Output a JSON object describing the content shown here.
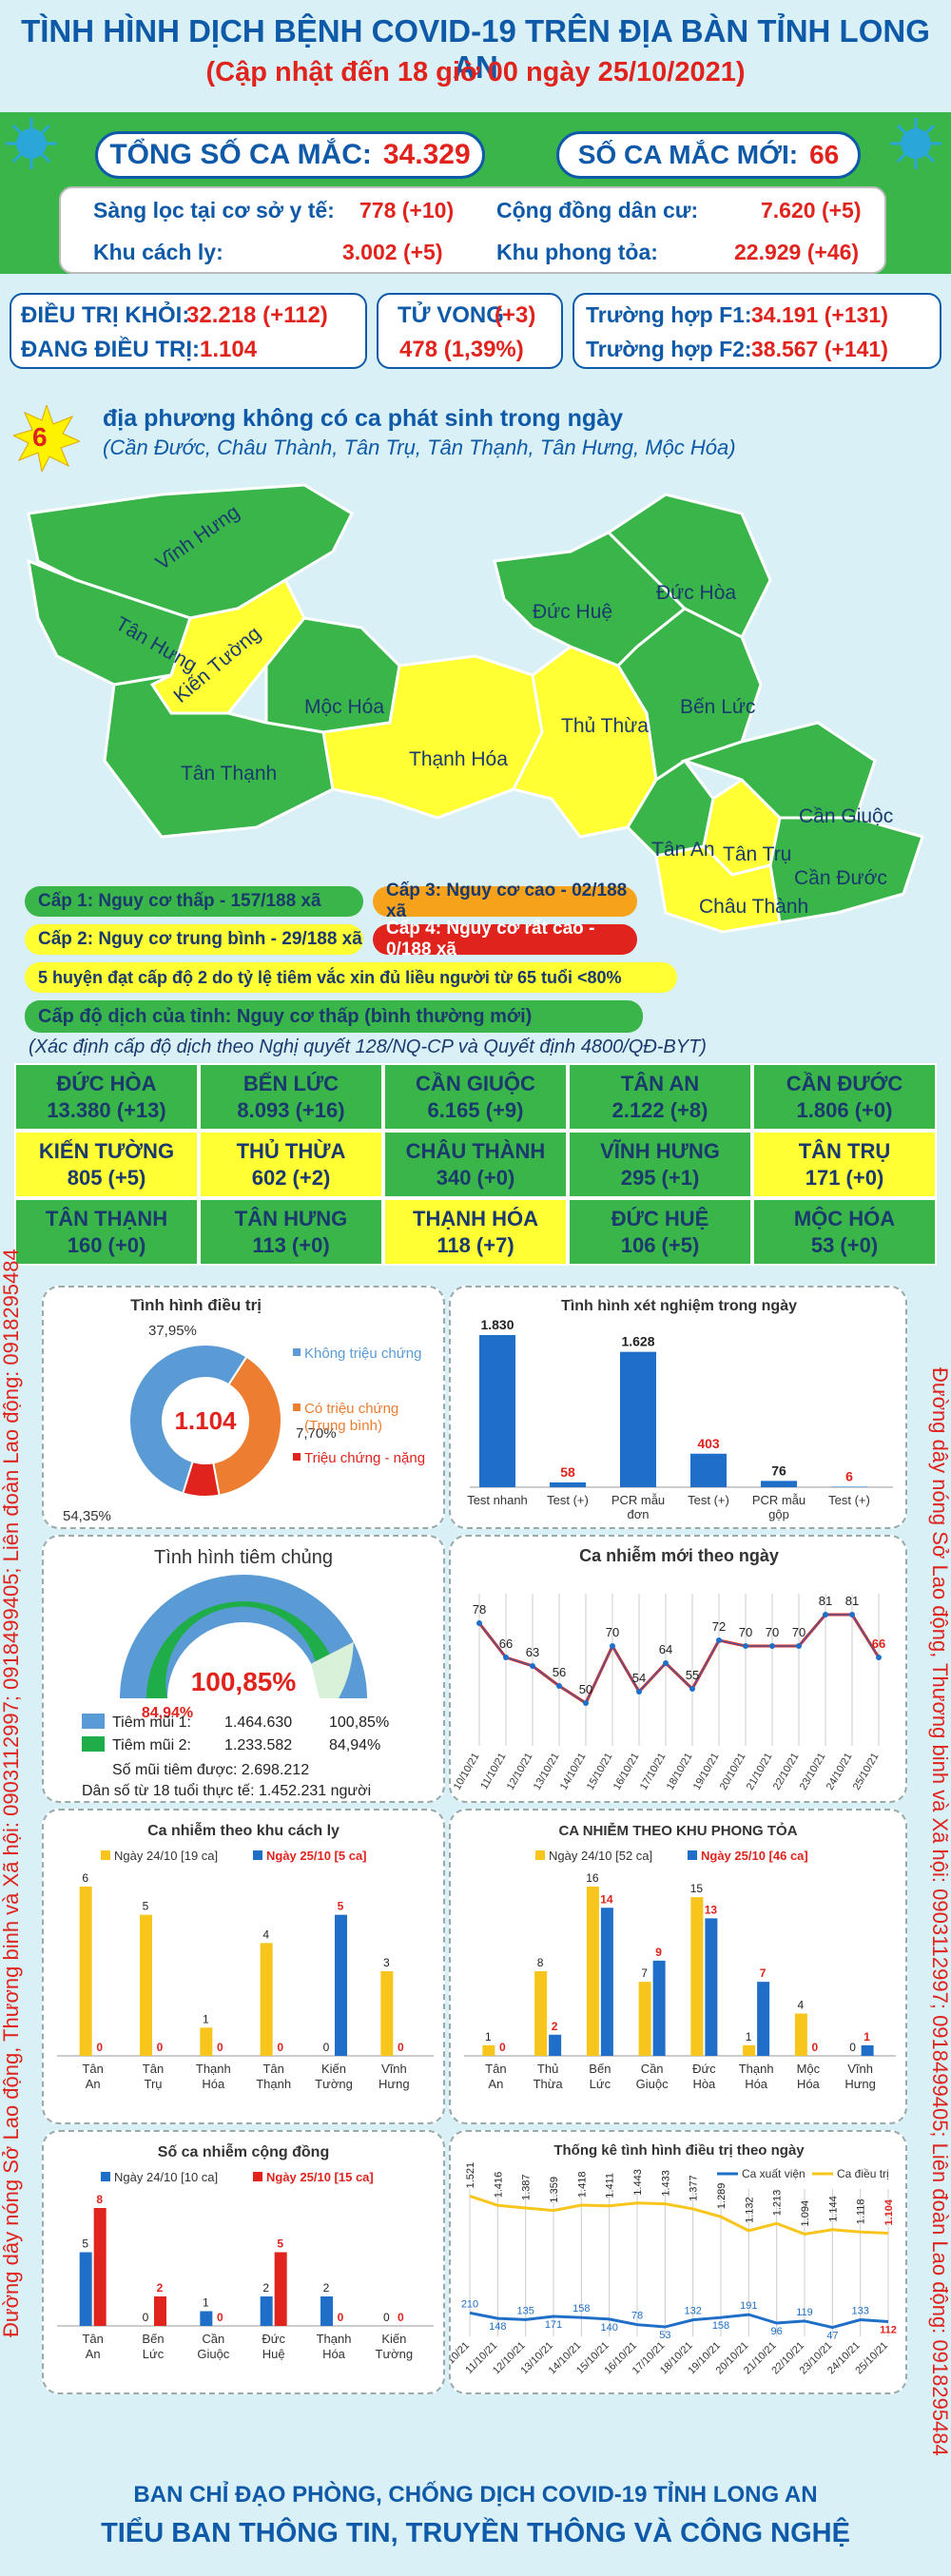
{
  "header": {
    "title": "TÌNH HÌNH DỊCH BỆNH COVID-19 TRÊN ĐỊA BÀN TỈNH LONG AN",
    "update": "(Cập nhật đến 18 giờ 00 ngày 25/10/2021)"
  },
  "summary": {
    "total_label": "TỔNG SỐ CA MẮC:",
    "total_value": "34.329",
    "new_label": "SỐ CA MẮC MỚI:",
    "new_value": "66",
    "r1_l_label": "Sàng lọc tại cơ sở y tế:",
    "r1_l_value": "778 (+10)",
    "r1_r_label": "Cộng đồng dân cư:",
    "r1_r_value": "7.620 (+5)",
    "r2_l_label": "Khu cách ly:",
    "r2_l_value": "3.002 (+5)",
    "r2_r_label": "Khu phong tỏa:",
    "r2_r_value": "22.929 (+46)"
  },
  "status": {
    "recovered_label": "ĐIỀU TRỊ KHỎI:",
    "recovered_value": "32.218 (+112)",
    "treating_label": "ĐANG ĐIỀU TRỊ:",
    "treating_value": "1.104",
    "death_label": "TỬ VONG",
    "death_delta": "(+3)",
    "death_value": "478 (1,39%)",
    "f1_label": "Trường hợp F1:",
    "f1_value": "34.191 (+131)",
    "f2_label": "Trường hợp F2:",
    "f2_value": "38.567 (+141)"
  },
  "localities": {
    "count": "6",
    "title": "địa phương không có ca phát sinh trong ngày",
    "list": "(Cần Đước, Châu Thành, Tân Trụ, Tân Thạnh, Tân Hưng, Mộc Hóa)"
  },
  "map_labels": [
    "Vĩnh Hưng",
    "Tân Hưng",
    "Kiến Tường",
    "Mộc Hóa",
    "Tân Thạnh",
    "Thạnh Hóa",
    "Thủ Thừa",
    "Đức Huệ",
    "Đức Hòa",
    "Bến Lức",
    "Tân An",
    "Tân Trụ",
    "Châu Thành",
    "Cần Giuộc",
    "Cần Đước"
  ],
  "levels": {
    "c1": "Cấp 1: Nguy cơ thấp - 157/188 xã",
    "c2": "Cấp 2: Nguy cơ trung bình - 29/188 xã",
    "c3": "Cấp 3: Nguy cơ cao - 02/188 xã",
    "c4": "Cấp 4: Nguy cơ rất cao - 0/188 xã",
    "vaccine_note": "5 huyện đạt cấp độ 2 do tỷ lệ tiêm vắc xin đủ liều người từ 65 tuổi <80%",
    "province": "Cấp độ dịch của tỉnh: Nguy cơ thấp (bình thường mới)",
    "basis": "(Xác định cấp độ dịch theo Nghị quyết 128/NQ-CP và Quyết định 4800/QĐ-BYT)"
  },
  "district_table": [
    [
      {
        "n": "ĐỨC HÒA",
        "v": "13.380 (+13)"
      },
      {
        "n": "BẾN LỨC",
        "v": "8.093 (+16)"
      },
      {
        "n": "CẦN GIUỘC",
        "v": "6.165 (+9)"
      },
      {
        "n": "TÂN AN",
        "v": "2.122 (+8)"
      },
      {
        "n": "CẦN ĐƯỚC",
        "v": "1.806 (+0)"
      }
    ],
    [
      {
        "n": "KIẾN TƯỜNG",
        "v": "805 (+5)"
      },
      {
        "n": "THỦ THỪA",
        "v": "602 (+2)"
      },
      {
        "n": "CHÂU THÀNH",
        "v": "340 (+0)"
      },
      {
        "n": "VĨNH HƯNG",
        "v": "295 (+1)"
      },
      {
        "n": "TÂN TRỤ",
        "v": "171 (+0)"
      }
    ],
    [
      {
        "n": "TÂN THẠNH",
        "v": "160 (+0)"
      },
      {
        "n": "TÂN HƯNG",
        "v": "113 (+0)"
      },
      {
        "n": "THẠNH HÓA",
        "v": "118 (+7)"
      },
      {
        "n": "ĐỨC HUỆ",
        "v": "106 (+5)"
      },
      {
        "n": "MỘC HÓA",
        "v": "53 (+0)"
      }
    ]
  ],
  "side_text": {
    "left": "Đường dây nóng Sở Lao động, Thương binh và Xã hội: 0903112997; 0918499405; Liên đoàn Lao động: 0918295484",
    "right": "Đường dây nóng Sở Lao động, Thương binh và Xã hội: 0903112997; 0918499405; Liên đoàn Lao động: 0918295484"
  },
  "footer": {
    "l1": "BAN CHỈ ĐẠO PHÒNG, CHỐNG DỊCH COVID-19 TỈNH LONG AN",
    "l2": "TIỂU BAN THÔNG TIN, TRUYỀN THÔNG VÀ CÔNG NGHỆ"
  },
  "colors": {
    "green": "#39b54a",
    "yellow": "#ffff33",
    "orange": "#f7a21b",
    "red": "#e0231c",
    "blue": "#1f6fc8"
  },
  "chart_data": [
    {
      "type": "pie",
      "title": "Tình hình điều trị",
      "center": "1.104",
      "labels": [
        "Không triệu chứng",
        "Có triệu chứng (Trung bình)",
        "Triệu chứng - nặng"
      ],
      "values": [
        54.35,
        37.95,
        7.7
      ],
      "value_labels": [
        "54,35%",
        "37,95%",
        "7,70%"
      ],
      "colors": [
        "#5b9bd5",
        "#ed7d31",
        "#e0231c"
      ]
    },
    {
      "type": "bar",
      "title": "Tình hình xét nghiệm trong ngày",
      "categories": [
        "Test nhanh",
        "Test (+)",
        "PCR mẫu đơn",
        "Test (+)",
        "PCR mẫu gộp",
        "Test (+)"
      ],
      "values": [
        1830,
        58,
        1628,
        403,
        76,
        6
      ],
      "value_labels": [
        "1.830",
        "58",
        "1.628",
        "403",
        "76",
        "6"
      ]
    },
    {
      "type": "gauge",
      "title": "Tình hình tiêm chủng",
      "big": "100,85%",
      "small": "84,94%",
      "rows": [
        {
          "label": "Tiêm mũi 1:",
          "count": "1.464.630",
          "pct": "100,85%"
        },
        {
          "label": "Tiêm mũi 2:",
          "count": "1.233.582",
          "pct": "84,94%"
        }
      ],
      "total": "Số mũi tiêm được:   2.698.212",
      "pop": "Dân số từ 18 tuổi thực tế:   1.452.231 người",
      "values": [
        100.85,
        84.94
      ]
    },
    {
      "type": "line",
      "title": "Ca nhiễm mới theo ngày",
      "x": [
        "10/10/21",
        "11/10/21",
        "12/10/21",
        "13/10/21",
        "14/10/21",
        "15/10/21",
        "16/10/21",
        "17/10/21",
        "18/10/21",
        "19/10/21",
        "20/10/21",
        "21/10/21",
        "22/10/21",
        "23/10/21",
        "24/10/21",
        "25/10/21"
      ],
      "values": [
        78,
        66,
        63,
        56,
        50,
        70,
        54,
        64,
        55,
        72,
        70,
        70,
        70,
        81,
        81,
        66
      ]
    },
    {
      "type": "bar",
      "title": "Ca nhiễm theo khu cách ly",
      "categories": [
        "Tân An",
        "Tân Trụ",
        "Thạnh Hóa",
        "Tân Thạnh",
        "Kiến Tường",
        "Vĩnh Hưng"
      ],
      "series": [
        {
          "name": "Ngày 24/10 [19 ca]",
          "values": [
            6,
            5,
            1,
            4,
            0,
            3
          ]
        },
        {
          "name": "Ngày 25/10 [5 ca]",
          "values": [
            0,
            0,
            0,
            0,
            5,
            0
          ]
        }
      ]
    },
    {
      "type": "bar",
      "title": "CA NHIỄM THEO KHU PHONG TỎA",
      "categories": [
        "Tân An",
        "Thủ Thừa",
        "Bến Lức",
        "Cần Giuộc",
        "Đức Hòa",
        "Thạnh Hóa",
        "Mộc Hóa",
        "Vĩnh Hưng"
      ],
      "series": [
        {
          "name": "Ngày 24/10 [52 ca]",
          "values": [
            1,
            8,
            16,
            7,
            15,
            1,
            4,
            0
          ]
        },
        {
          "name": "Ngày 25/10 [46 ca]",
          "values": [
            0,
            2,
            14,
            9,
            13,
            7,
            0,
            1
          ]
        }
      ]
    },
    {
      "type": "bar",
      "title": "Số ca nhiễm cộng đồng",
      "categories": [
        "Tân An",
        "Bến Lức",
        "Cần Giuộc",
        "Đức Huệ",
        "Thạnh Hóa",
        "Kiến Tường"
      ],
      "series": [
        {
          "name": "Ngày 24/10 [10 ca]",
          "values": [
            5,
            0,
            1,
            2,
            2,
            0
          ]
        },
        {
          "name": "Ngày 25/10 [15 ca]",
          "values": [
            8,
            2,
            0,
            5,
            0,
            0
          ]
        }
      ]
    },
    {
      "type": "line",
      "title": "Thống kê tình hình điều trị theo ngày",
      "x": [
        "10/10/21",
        "11/10/21",
        "12/10/21",
        "13/10/21",
        "14/10/21",
        "15/10/21",
        "16/10/21",
        "17/10/21",
        "18/10/21",
        "19/10/21",
        "20/10/21",
        "21/10/21",
        "22/10/21",
        "23/10/21",
        "24/10/21",
        "25/10/21"
      ],
      "series": [
        {
          "name": "Ca xuất viện",
          "values": [
            210,
            148,
            135,
            171,
            158,
            140,
            78,
            53,
            132,
            158,
            191,
            96,
            119,
            47,
            133,
            112
          ]
        },
        {
          "name": "Ca điều trị",
          "values": [
            1521,
            1416,
            1387,
            1359,
            1418,
            1411,
            1443,
            1433,
            1377,
            1289,
            1132,
            1213,
            1094,
            1144,
            1118,
            1104
          ]
        }
      ],
      "value_labels_2": [
        "1.521",
        "1.416",
        "1.387",
        "1.359",
        "1.418",
        "1.411",
        "1.443",
        "1.433",
        "1.377",
        "1.289",
        "1.132",
        "1.213",
        "1.094",
        "1.144",
        "1.118",
        "1.104"
      ]
    }
  ]
}
